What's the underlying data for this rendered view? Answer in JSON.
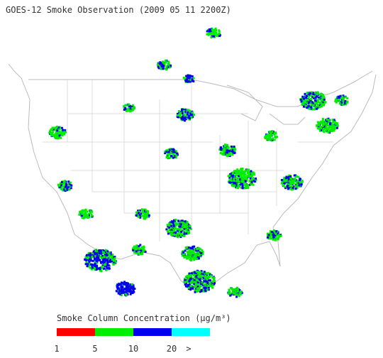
{
  "title": "GOES-12 Smoke Observation (2009 05 11  2200Z)",
  "legend": {
    "title": "Smoke Column Concentration (μg/m³)",
    "ticks": [
      1,
      5,
      10,
      20
    ],
    "overflow_label": ">",
    "colors": [
      "#ff0000",
      "#00ee00",
      "#0000ee",
      "#00ffff"
    ]
  }
}
